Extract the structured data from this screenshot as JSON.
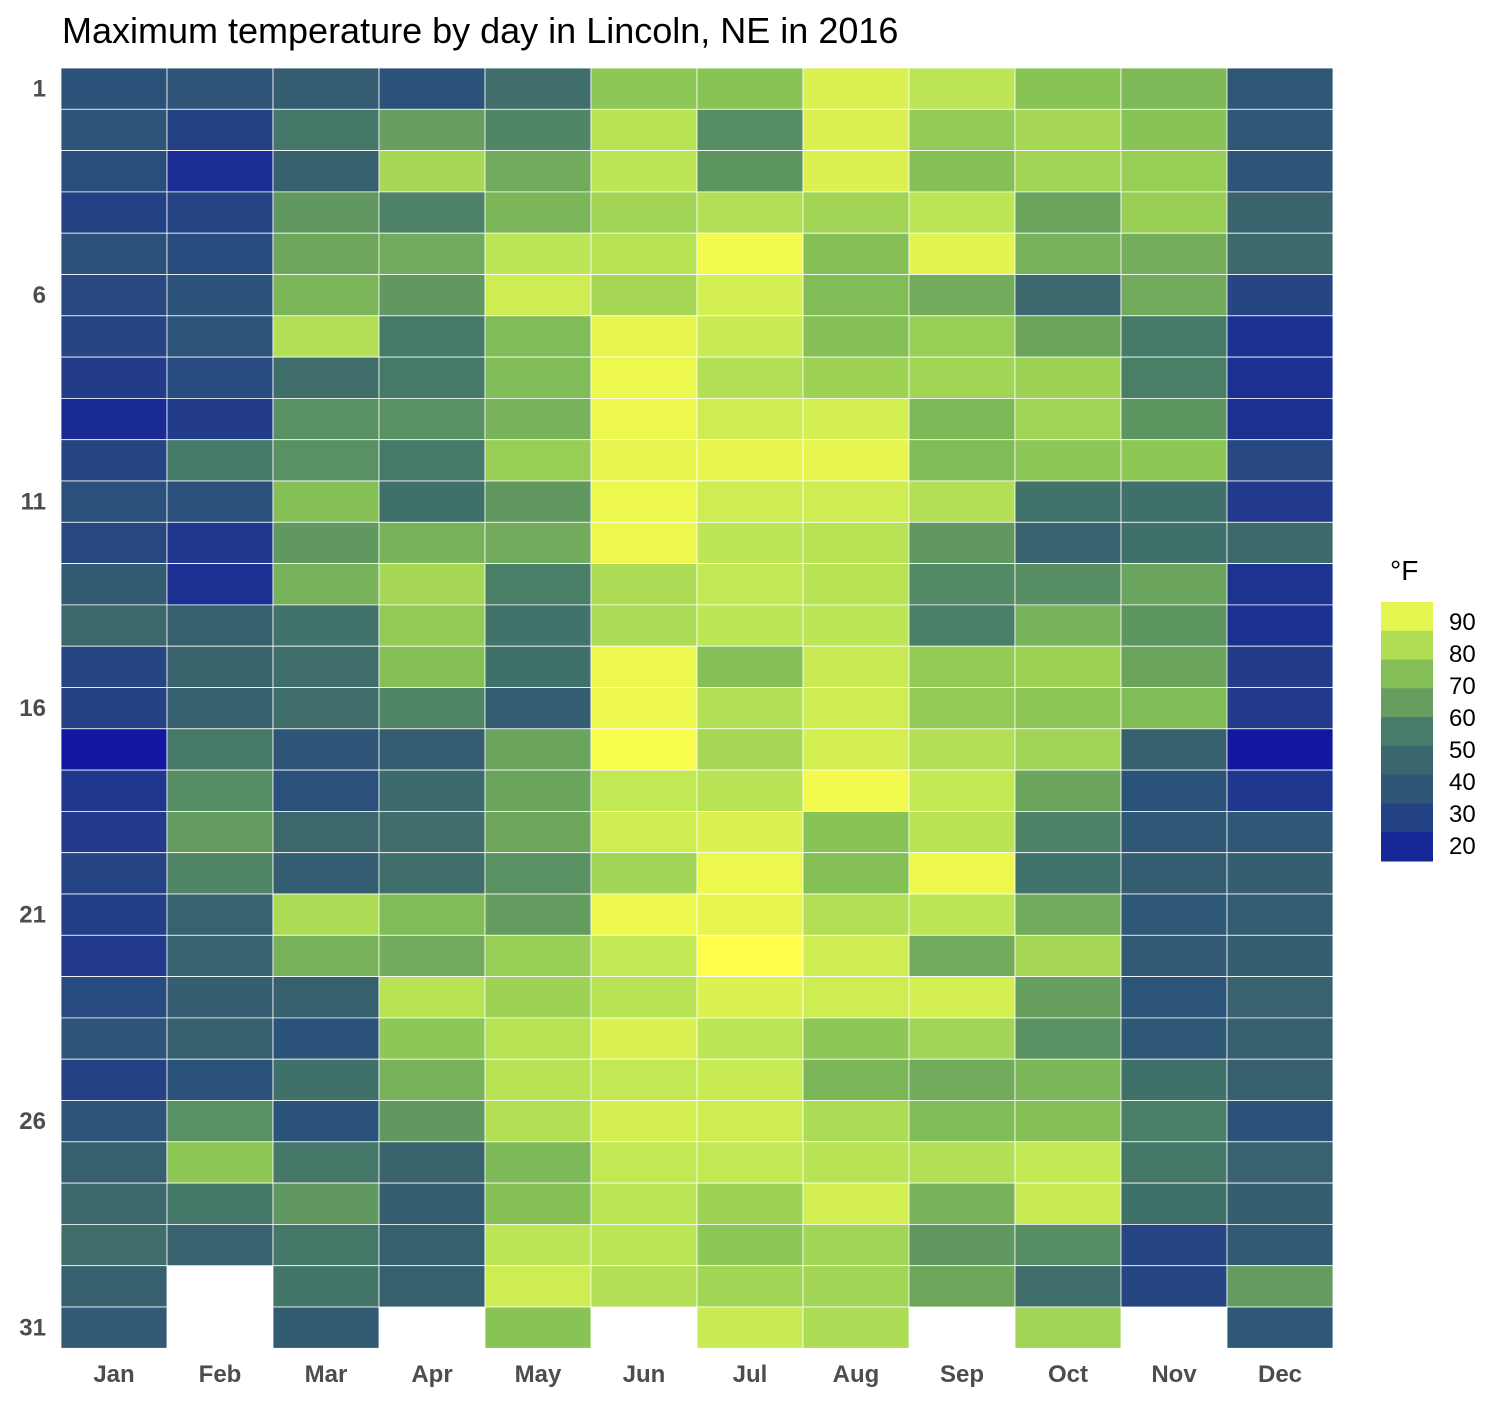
{
  "chart_data": {
    "type": "heatmap",
    "title": "Maximum temperature by day in Lincoln, NE in 2016",
    "xlabel": "",
    "ylabel": "",
    "months": [
      "Jan",
      "Feb",
      "Mar",
      "Apr",
      "May",
      "Jun",
      "Jul",
      "Aug",
      "Sep",
      "Oct",
      "Nov",
      "Dec"
    ],
    "y_tick_labels": [
      "1",
      "6",
      "11",
      "16",
      "21",
      "26",
      "31"
    ],
    "y_tick_days": [
      1,
      6,
      11,
      16,
      21,
      26,
      31
    ],
    "grid": false,
    "legend": {
      "title": "°F",
      "position": "right",
      "labels": [
        "90",
        "80",
        "70",
        "60",
        "50",
        "40",
        "30",
        "20"
      ],
      "ticks": [
        90,
        80,
        70,
        60,
        50,
        40,
        30,
        20
      ],
      "range": [
        15,
        96
      ]
    },
    "colorscale": [
      {
        "v": 15,
        "c": "#1117a0"
      },
      {
        "v": 25,
        "c": "#213a8c"
      },
      {
        "v": 35,
        "c": "#2b5279"
      },
      {
        "v": 45,
        "c": "#38626e"
      },
      {
        "v": 55,
        "c": "#467a68"
      },
      {
        "v": 65,
        "c": "#67a05e"
      },
      {
        "v": 75,
        "c": "#88c455"
      },
      {
        "v": 85,
        "c": "#bce655"
      },
      {
        "v": 96,
        "c": "#ffff4c"
      }
    ],
    "values": {
      "Jan": [
        35,
        37,
        33,
        28,
        35,
        31,
        30,
        26,
        20,
        30,
        34,
        31,
        41,
        47,
        30,
        28,
        15,
        24,
        25,
        29,
        27,
        25,
        32,
        37,
        28,
        37,
        44,
        47,
        50,
        44,
        40
      ],
      "Feb": [
        37,
        28,
        21,
        29,
        32,
        35,
        36,
        32,
        26,
        55,
        34,
        24,
        22,
        44,
        46,
        44,
        55,
        60,
        64,
        58,
        45,
        45,
        43,
        44,
        35,
        61,
        76,
        54,
        45,
        null,
        null
      ],
      "Mar": [
        42,
        54,
        44,
        63,
        67,
        71,
        83,
        50,
        61,
        61,
        74,
        63,
        70,
        52,
        50,
        50,
        37,
        34,
        47,
        42,
        82,
        70,
        44,
        35,
        51,
        35,
        54,
        63,
        54,
        53,
        41
      ],
      "Apr": [
        35,
        65,
        81,
        57,
        68,
        63,
        55,
        55,
        61,
        55,
        51,
        70,
        81,
        77,
        74,
        58,
        42,
        48,
        50,
        50,
        73,
        68,
        84,
        76,
        70,
        63,
        46,
        43,
        44,
        44,
        null
      ],
      "May": [
        50,
        58,
        68,
        71,
        85,
        88,
        73,
        73,
        70,
        78,
        63,
        68,
        56,
        52,
        51,
        42,
        66,
        66,
        67,
        61,
        64,
        78,
        79,
        84,
        84,
        83,
        72,
        74,
        85,
        88,
        75
      ],
      "Jun": [
        76,
        84,
        85,
        80,
        84,
        81,
        92,
        93,
        93,
        92,
        93,
        93,
        82,
        82,
        93,
        93,
        95,
        86,
        88,
        80,
        93,
        86,
        84,
        90,
        86,
        89,
        86,
        85,
        85,
        83,
        null
      ],
      "Jul": [
        75,
        60,
        62,
        83,
        94,
        89,
        87,
        83,
        88,
        92,
        88,
        85,
        86,
        85,
        74,
        83,
        81,
        84,
        90,
        93,
        92,
        96,
        90,
        85,
        87,
        88,
        86,
        79,
        76,
        80,
        87
      ],
      "Aug": [
        90,
        90,
        90,
        80,
        74,
        73,
        74,
        79,
        89,
        92,
        88,
        84,
        84,
        85,
        87,
        88,
        89,
        94,
        75,
        74,
        83,
        88,
        88,
        76,
        71,
        82,
        84,
        89,
        80,
        80,
        82
      ],
      "Sep": [
        85,
        77,
        74,
        85,
        91,
        68,
        78,
        80,
        72,
        73,
        83,
        63,
        59,
        56,
        77,
        77,
        83,
        86,
        84,
        93,
        85,
        68,
        89,
        80,
        68,
        73,
        83,
        70,
        63,
        67,
        null
      ],
      "Oct": [
        75,
        81,
        80,
        66,
        70,
        47,
        66,
        79,
        80,
        76,
        52,
        45,
        60,
        70,
        79,
        76,
        80,
        66,
        57,
        52,
        68,
        81,
        65,
        61,
        71,
        74,
        86,
        87,
        60,
        50,
        80
      ],
      "Nov": [
        72,
        75,
        78,
        78,
        69,
        68,
        55,
        56,
        62,
        76,
        51,
        51,
        66,
        62,
        66,
        73,
        44,
        35,
        38,
        42,
        38,
        40,
        36,
        38,
        51,
        56,
        54,
        51,
        30,
        30,
        null
      ],
      "Dec": [
        38,
        38,
        37,
        46,
        48,
        30,
        22,
        22,
        22,
        31,
        25,
        48,
        23,
        22,
        26,
        25,
        15,
        24,
        38,
        43,
        42,
        43,
        45,
        44,
        44,
        35,
        45,
        43,
        40,
        64,
        38
      ]
    }
  }
}
